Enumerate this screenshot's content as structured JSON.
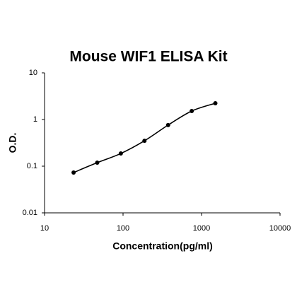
{
  "chart_data": {
    "type": "scatter",
    "title": "Mouse WIF1 ELISA Kit",
    "x_label": "Concentration(pg/ml)",
    "y_label": "O.D.",
    "x": [
      23.44,
      46.88,
      93.75,
      187.5,
      375,
      750,
      1500
    ],
    "values": [
      0.073,
      0.119,
      0.187,
      0.35,
      0.76,
      1.52,
      2.23
    ],
    "color": "#000000",
    "curve": true,
    "xscale": "log",
    "yscale": "log",
    "xlim": [
      10,
      10000
    ],
    "xticks": [
      10,
      100,
      1000,
      10000
    ],
    "ylim": [
      0.01,
      10
    ],
    "yticks": [
      0.01,
      0.1,
      1,
      10
    ],
    "grid": false
  }
}
